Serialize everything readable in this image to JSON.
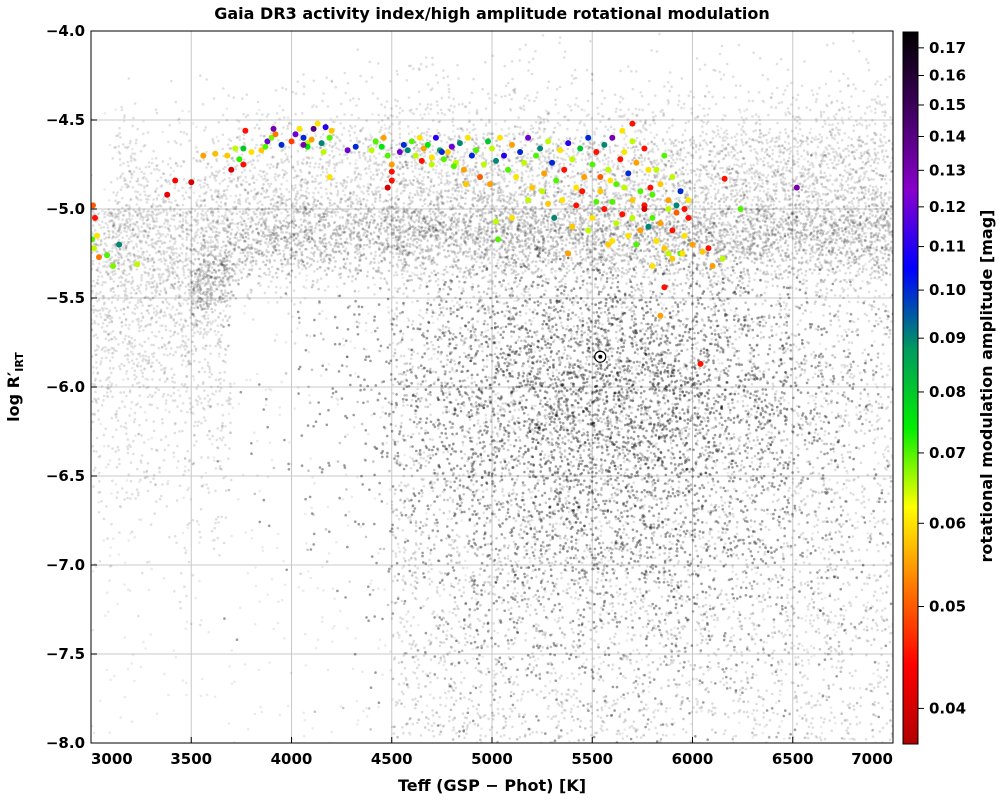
{
  "chart_data": {
    "type": "scatter",
    "title": "Gaia DR3 activity index/high amplitude rotational modulation",
    "xlabel": "Teff (GSP − Phot) [K]",
    "ylabel_main": "log R′",
    "ylabel_sub": "IRT",
    "colorbar_label": "rotational modulation amplitude [mag]",
    "xlim": [
      3000,
      7000
    ],
    "ylim": [
      -8.0,
      -4.0
    ],
    "clim": [
      0.037,
      0.176
    ],
    "color_scale": "log",
    "grid": true,
    "x_ticks": [
      "3000",
      "3500",
      "4000",
      "4500",
      "5000",
      "5500",
      "6000",
      "6500",
      "7000"
    ],
    "y_ticks": [
      "−4.0",
      "−4.5",
      "−5.0",
      "−5.5",
      "−6.0",
      "−6.5",
      "−7.0",
      "−7.5",
      "−8.0"
    ],
    "colorbar_ticks": [
      "0.04",
      "0.05",
      "0.06",
      "0.07",
      "0.08",
      "0.09",
      "0.10",
      "0.11",
      "0.12",
      "0.13",
      "0.14",
      "0.15",
      "0.16",
      "0.17"
    ],
    "colorbar_colors": [
      "#b00000",
      "#ff0000",
      "#ff7a00",
      "#ffff00",
      "#00ee00",
      "#009a60",
      "#0000ff",
      "#8800cc",
      "#400060",
      "#000000"
    ],
    "highlight": {
      "teff": 5540,
      "logR": -5.83
    },
    "highlighted_stars": [
      [
        3010,
        -4.98,
        0.05
      ],
      [
        3020,
        -5.05,
        0.045
      ],
      [
        3005,
        -5.17,
        0.07
      ],
      [
        3015,
        -5.22,
        0.065
      ],
      [
        3040,
        -5.27,
        0.052
      ],
      [
        3080,
        -5.26,
        0.07
      ],
      [
        3110,
        -5.32,
        0.068
      ],
      [
        3140,
        -5.2,
        0.09
      ],
      [
        3230,
        -5.31,
        0.065
      ],
      [
        3030,
        -5.15,
        0.06
      ],
      [
        3380,
        -4.92,
        0.042
      ],
      [
        3420,
        -4.84,
        0.044
      ],
      [
        3500,
        -4.85,
        0.04
      ],
      [
        3560,
        -4.7,
        0.055
      ],
      [
        3620,
        -4.69,
        0.057
      ],
      [
        3680,
        -4.7,
        0.058
      ],
      [
        3720,
        -4.66,
        0.065
      ],
      [
        3740,
        -4.72,
        0.072
      ],
      [
        3760,
        -4.66,
        0.08
      ],
      [
        3800,
        -4.68,
        0.06
      ],
      [
        3850,
        -4.67,
        0.058
      ],
      [
        3880,
        -4.62,
        0.12
      ],
      [
        3900,
        -4.6,
        0.068
      ],
      [
        3920,
        -4.58,
        0.052
      ],
      [
        3950,
        -4.64,
        0.1
      ],
      [
        3770,
        -4.56,
        0.045
      ],
      [
        3700,
        -4.78,
        0.04
      ],
      [
        3760,
        -4.75,
        0.045
      ],
      [
        3870,
        -4.65,
        0.07
      ],
      [
        3910,
        -4.55,
        0.13
      ],
      [
        4000,
        -4.62,
        0.048
      ],
      [
        4020,
        -4.58,
        0.12
      ],
      [
        4040,
        -4.55,
        0.06
      ],
      [
        4060,
        -4.6,
        0.1
      ],
      [
        4080,
        -4.63,
        0.065
      ],
      [
        4100,
        -4.61,
        0.055
      ],
      [
        4110,
        -4.55,
        0.14
      ],
      [
        4130,
        -4.52,
        0.06
      ],
      [
        4150,
        -4.63,
        0.09
      ],
      [
        4170,
        -4.54,
        0.11
      ],
      [
        4190,
        -4.6,
        0.07
      ],
      [
        4200,
        -4.56,
        0.058
      ],
      [
        4080,
        -4.65,
        0.075
      ],
      [
        4160,
        -4.68,
        0.065
      ],
      [
        4190,
        -4.82,
        0.06
      ],
      [
        4060,
        -4.64,
        0.13
      ],
      [
        4280,
        -4.67,
        0.12
      ],
      [
        4320,
        -4.65,
        0.1
      ],
      [
        4400,
        -4.67,
        0.065
      ],
      [
        4420,
        -4.62,
        0.07
      ],
      [
        4450,
        -4.65,
        0.075
      ],
      [
        4460,
        -4.6,
        0.055
      ],
      [
        4480,
        -4.7,
        0.07
      ],
      [
        4500,
        -4.75,
        0.055
      ],
      [
        4500,
        -4.79,
        0.045
      ],
      [
        4480,
        -4.88,
        0.04
      ],
      [
        4500,
        -4.84,
        0.045
      ],
      [
        4540,
        -4.68,
        0.12
      ],
      [
        4560,
        -4.64,
        0.1
      ],
      [
        4580,
        -4.67,
        0.09
      ],
      [
        4600,
        -4.62,
        0.07
      ],
      [
        4620,
        -4.7,
        0.065
      ],
      [
        4640,
        -4.6,
        0.06
      ],
      [
        4660,
        -4.66,
        0.055
      ],
      [
        4680,
        -4.64,
        0.075
      ],
      [
        4700,
        -4.71,
        0.06
      ],
      [
        4720,
        -4.6,
        0.11
      ],
      [
        4740,
        -4.67,
        0.085
      ],
      [
        4760,
        -4.72,
        0.07
      ],
      [
        4780,
        -4.68,
        0.058
      ],
      [
        4800,
        -4.65,
        0.12
      ],
      [
        4820,
        -4.74,
        0.065
      ],
      [
        4840,
        -4.63,
        0.09
      ],
      [
        4860,
        -4.78,
        0.055
      ],
      [
        4880,
        -4.6,
        0.06
      ],
      [
        4900,
        -4.7,
        0.1
      ],
      [
        4920,
        -4.67,
        0.07
      ],
      [
        4940,
        -4.82,
        0.05
      ],
      [
        4960,
        -4.75,
        0.065
      ],
      [
        4980,
        -4.62,
        0.08
      ],
      [
        4870,
        -4.86,
        0.058
      ],
      [
        4810,
        -4.76,
        0.07
      ],
      [
        4750,
        -4.68,
        0.1
      ],
      [
        4700,
        -4.75,
        0.065
      ],
      [
        4650,
        -4.73,
        0.045
      ],
      [
        4990,
        -4.86,
        0.055
      ],
      [
        5000,
        -4.66,
        0.065
      ],
      [
        5020,
        -4.73,
        0.09
      ],
      [
        5040,
        -4.6,
        0.06
      ],
      [
        5060,
        -4.7,
        0.11
      ],
      [
        5080,
        -4.78,
        0.07
      ],
      [
        5100,
        -4.64,
        0.055
      ],
      [
        5120,
        -4.82,
        0.06
      ],
      [
        5140,
        -4.68,
        0.1
      ],
      [
        5160,
        -4.74,
        0.065
      ],
      [
        5180,
        -4.6,
        0.12
      ],
      [
        5200,
        -4.88,
        0.058
      ],
      [
        5220,
        -4.7,
        0.07
      ],
      [
        5240,
        -4.66,
        0.09
      ],
      [
        5260,
        -4.8,
        0.055
      ],
      [
        5280,
        -4.62,
        0.065
      ],
      [
        5300,
        -4.74,
        0.1
      ],
      [
        5320,
        -4.84,
        0.07
      ],
      [
        5340,
        -4.67,
        0.06
      ],
      [
        5360,
        -4.78,
        0.045
      ],
      [
        5380,
        -4.63,
        0.11
      ],
      [
        5400,
        -4.72,
        0.065
      ],
      [
        5420,
        -4.88,
        0.06
      ],
      [
        5440,
        -4.66,
        0.08
      ],
      [
        5460,
        -4.82,
        0.055
      ],
      [
        5480,
        -4.6,
        0.1
      ],
      [
        5500,
        -4.75,
        0.07
      ],
      [
        5520,
        -4.68,
        0.045
      ],
      [
        5540,
        -4.9,
        0.058
      ],
      [
        5560,
        -4.64,
        0.09
      ],
      [
        5580,
        -4.78,
        0.065
      ],
      [
        5600,
        -4.6,
        0.13
      ],
      [
        5620,
        -4.86,
        0.07
      ],
      [
        5640,
        -4.72,
        0.045
      ],
      [
        5660,
        -4.68,
        0.06
      ],
      [
        5680,
        -4.8,
        0.1
      ],
      [
        5700,
        -4.62,
        0.065
      ],
      [
        5720,
        -4.74,
        0.055
      ],
      [
        5740,
        -4.9,
        0.07
      ],
      [
        5760,
        -4.66,
        0.045
      ],
      [
        5780,
        -4.78,
        0.06
      ],
      [
        5020,
        -5.07,
        0.065
      ],
      [
        5030,
        -5.17,
        0.07
      ],
      [
        5100,
        -5.05,
        0.06
      ],
      [
        5180,
        -4.95,
        0.065
      ],
      [
        5280,
        -4.97,
        0.058
      ],
      [
        5310,
        -5.05,
        0.09
      ],
      [
        5400,
        -5.1,
        0.058
      ],
      [
        5420,
        -4.98,
        0.045
      ],
      [
        5480,
        -5.12,
        0.065
      ],
      [
        5500,
        -5.05,
        0.06
      ],
      [
        5520,
        -4.96,
        0.07
      ],
      [
        5560,
        -5.0,
        0.045
      ],
      [
        5580,
        -5.2,
        0.058
      ],
      [
        5600,
        -5.18,
        0.06
      ],
      [
        5620,
        -5.08,
        0.065
      ],
      [
        5650,
        -5.03,
        0.045
      ],
      [
        5680,
        -5.15,
        0.06
      ],
      [
        5700,
        -5.05,
        0.065
      ],
      [
        5720,
        -5.2,
        0.07
      ],
      [
        5740,
        -5.12,
        0.055
      ],
      [
        5760,
        -4.98,
        0.045
      ],
      [
        5780,
        -5.1,
        0.09
      ],
      [
        5800,
        -5.05,
        0.07
      ],
      [
        5820,
        -5.18,
        0.06
      ],
      [
        5840,
        -5.08,
        0.055
      ],
      [
        5860,
        -5.22,
        0.058
      ],
      [
        5880,
        -5.0,
        0.065
      ],
      [
        5900,
        -5.12,
        0.045
      ],
      [
        5920,
        -4.98,
        0.09
      ],
      [
        5940,
        -5.25,
        0.07
      ],
      [
        5960,
        -5.15,
        0.06
      ],
      [
        5980,
        -5.05,
        0.045
      ],
      [
        6000,
        -5.2,
        0.055
      ],
      [
        6050,
        -5.24,
        0.058
      ],
      [
        6080,
        -5.22,
        0.045
      ],
      [
        6100,
        -5.32,
        0.055
      ],
      [
        6150,
        -5.28,
        0.065
      ],
      [
        6160,
        -4.83,
        0.045
      ],
      [
        6240,
        -5.0,
        0.07
      ],
      [
        6520,
        -4.88,
        0.13
      ],
      [
        5380,
        -5.25,
        0.055
      ],
      [
        5800,
        -5.32,
        0.06
      ],
      [
        5840,
        -5.6,
        0.055
      ],
      [
        5860,
        -5.44,
        0.045
      ],
      [
        5880,
        -5.25,
        0.065
      ],
      [
        5900,
        -5.28,
        0.058
      ],
      [
        6040,
        -5.87,
        0.045
      ],
      [
        5950,
        -5.25,
        0.06
      ],
      [
        5700,
        -4.52,
        0.045
      ],
      [
        5650,
        -4.56,
        0.06
      ],
      [
        5800,
        -4.92,
        0.07
      ],
      [
        5820,
        -4.78,
        0.065
      ],
      [
        5840,
        -4.86,
        0.058
      ],
      [
        5860,
        -4.7,
        0.07
      ],
      [
        5880,
        -4.95,
        0.055
      ],
      [
        5900,
        -4.82,
        0.065
      ],
      [
        5920,
        -5.02,
        0.05
      ],
      [
        5940,
        -4.9,
        0.1
      ],
      [
        5960,
        -5.0,
        0.045
      ],
      [
        5980,
        -4.95,
        0.06
      ],
      [
        5760,
        -5.0,
        0.04
      ],
      [
        5790,
        -4.88,
        0.045
      ],
      [
        5700,
        -4.95,
        0.058
      ],
      [
        5660,
        -4.88,
        0.065
      ],
      [
        5600,
        -4.96,
        0.07
      ],
      [
        5590,
        -4.84,
        0.06
      ],
      [
        5540,
        -4.82,
        0.05
      ],
      [
        5450,
        -4.9,
        0.045
      ],
      [
        5350,
        -4.95,
        0.06
      ],
      [
        5250,
        -4.9,
        0.065
      ]
    ]
  }
}
